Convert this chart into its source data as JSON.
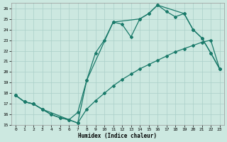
{
  "xlabel": "Humidex (Indice chaleur)",
  "xlim": [
    -0.5,
    23.5
  ],
  "ylim": [
    15,
    26.5
  ],
  "yticks": [
    15,
    16,
    17,
    18,
    19,
    20,
    21,
    22,
    23,
    24,
    25,
    26
  ],
  "xticks": [
    0,
    1,
    2,
    3,
    4,
    5,
    6,
    7,
    8,
    9,
    10,
    11,
    12,
    13,
    14,
    15,
    16,
    17,
    18,
    19,
    20,
    21,
    22,
    23
  ],
  "bg_color": "#cce8e0",
  "grid_color": "#aacfc8",
  "line_color": "#1a7a6a",
  "line1_x": [
    0,
    1,
    2,
    3,
    4,
    5,
    6,
    7,
    8,
    9,
    10,
    11,
    12,
    13,
    14,
    15,
    16,
    17,
    18,
    19,
    20,
    21,
    22,
    23
  ],
  "line1_y": [
    17.8,
    17.2,
    17.0,
    16.5,
    16.0,
    15.7,
    15.5,
    15.2,
    16.5,
    17.3,
    18.0,
    18.7,
    19.3,
    19.8,
    20.3,
    20.7,
    21.1,
    21.5,
    21.9,
    22.2,
    22.5,
    22.8,
    23.0,
    20.3
  ],
  "line2_x": [
    0,
    1,
    2,
    3,
    4,
    5,
    6,
    7,
    8,
    9,
    10,
    11,
    12,
    13,
    14,
    15,
    16,
    17,
    18,
    19,
    20,
    21,
    22,
    23
  ],
  "line2_y": [
    17.8,
    17.2,
    17.0,
    16.5,
    16.0,
    15.7,
    15.5,
    16.2,
    19.2,
    21.8,
    23.0,
    24.7,
    24.5,
    23.3,
    25.0,
    25.5,
    26.3,
    25.7,
    25.2,
    25.5,
    24.0,
    23.2,
    21.8,
    20.3
  ],
  "line3_x": [
    0,
    1,
    2,
    3,
    7,
    8,
    11,
    14,
    15,
    16,
    19,
    20,
    21,
    22,
    23
  ],
  "line3_y": [
    17.8,
    17.2,
    17.0,
    16.5,
    15.2,
    19.2,
    24.7,
    25.0,
    25.5,
    26.3,
    25.5,
    24.0,
    23.2,
    21.8,
    20.3
  ]
}
